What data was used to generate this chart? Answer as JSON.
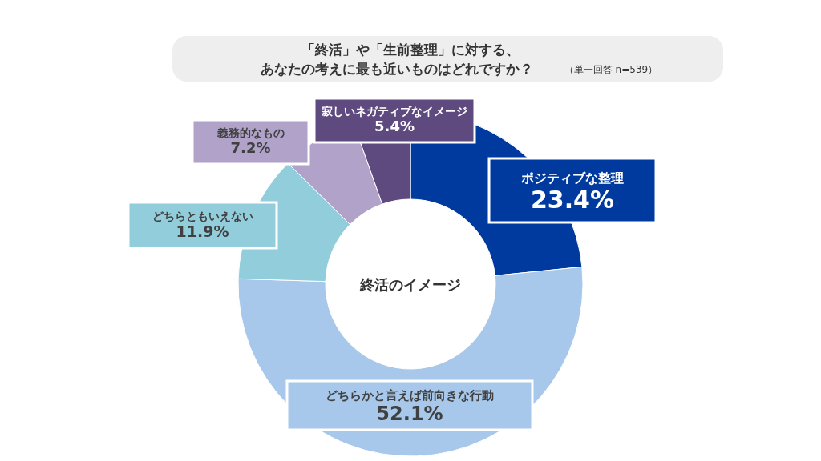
{
  "chart_data": {
    "type": "donut",
    "title": "「終活」や「生前整理」に対する、",
    "subtitle": "あなたの考えに最も近いものはどれですか？",
    "categories": [
      "ポジティブな整理",
      "どちらかと言えば前向きな行動",
      "どちらともいえない",
      "義務的なもの",
      "寂しいネガティブなイメージ"
    ],
    "values": [
      23.4,
      52.1,
      11.9,
      7.2,
      5.4
    ],
    "value_labels": [
      "23.4%",
      "52.1%",
      "11.9%",
      "7.2%",
      "5.4%"
    ],
    "colors": [
      "#003a9e",
      "#a7c8ea",
      "#92cddc",
      "#b0a2c8",
      "#5e4a7e"
    ],
    "annotations": [
      "（単一回答 n=539）",
      "終活のイメージ"
    ]
  }
}
